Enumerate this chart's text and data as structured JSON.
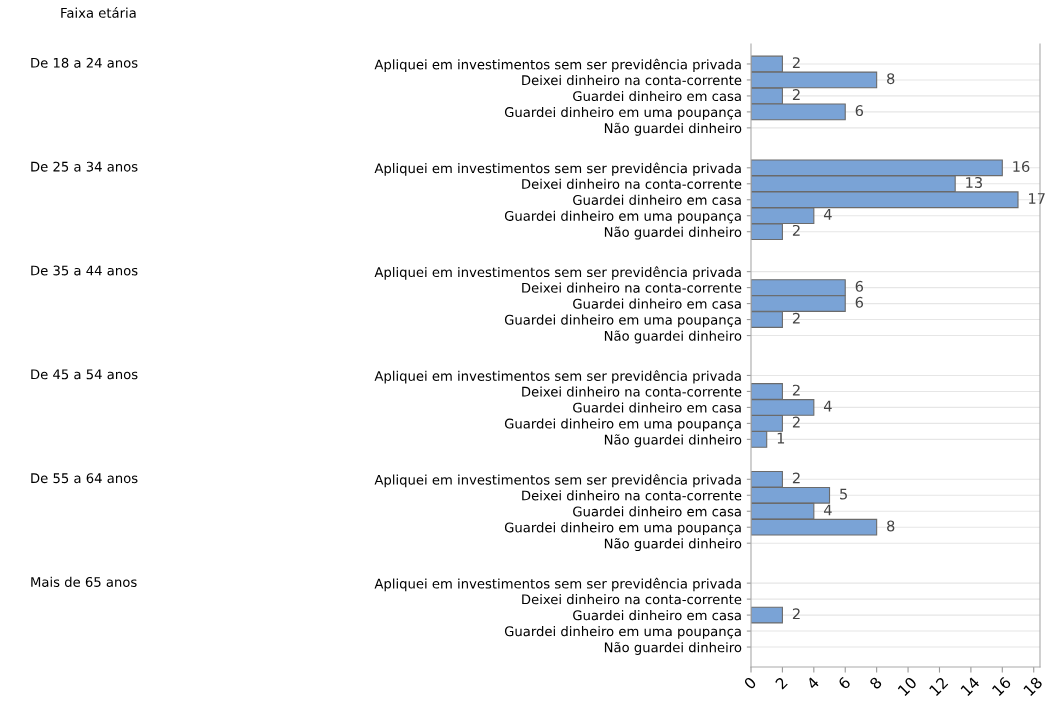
{
  "chart_data": {
    "type": "bar",
    "orientation": "horizontal",
    "annotations": [
      "Faixa etária",
      "De 18 a 24 anos",
      "De 25 a 34 anos",
      "De 35 a 44 anos",
      "De 45 a 54 anos",
      "De 55 a 64 anos",
      "Mais de 65 anos"
    ],
    "categories": [
      "Apliquei em investimentos sem ser previdência privada",
      "Deixei dinheiro na conta-corrente",
      "Guardei dinheiro em casa",
      "Guardei dinheiro em uma poupança",
      "Não guardei dinheiro",
      "Apliquei em investimentos sem ser previdência privada",
      "Deixei dinheiro na conta-corrente",
      "Guardei dinheiro em casa",
      "Guardei dinheiro em uma poupança",
      "Não guardei dinheiro",
      "Apliquei em investimentos sem ser previdência privada",
      "Deixei dinheiro na conta-corrente",
      "Guardei dinheiro em casa",
      "Guardei dinheiro em uma poupança",
      "Não guardei dinheiro",
      "Apliquei em investimentos sem ser previdência privada",
      "Deixei dinheiro na conta-corrente",
      "Guardei dinheiro em casa",
      "Guardei dinheiro em uma poupança",
      "Não guardei dinheiro",
      "Apliquei em investimentos sem ser previdência privada",
      "Deixei dinheiro na conta-corrente",
      "Guardei dinheiro em casa",
      "Guardei dinheiro em uma poupança",
      "Não guardei dinheiro",
      "Apliquei em investimentos sem ser previdência privada",
      "Deixei dinheiro na conta-corrente",
      "Guardei dinheiro em casa",
      "Guardei dinheiro em uma poupança",
      "Não guardei dinheiro"
    ],
    "values": [
      2,
      8,
      2,
      6,
      null,
      16,
      13,
      17,
      4,
      2,
      null,
      6,
      6,
      2,
      null,
      null,
      2,
      4,
      2,
      1,
      2,
      5,
      4,
      8,
      null,
      null,
      null,
      2,
      null,
      null
    ],
    "color": "#7aa3d6",
    "data_labels": true,
    "grid": "y",
    "xlim": [
      0,
      18.4
    ],
    "xticks": [
      0,
      2,
      4,
      6,
      8,
      10,
      12,
      14,
      16,
      18
    ]
  }
}
